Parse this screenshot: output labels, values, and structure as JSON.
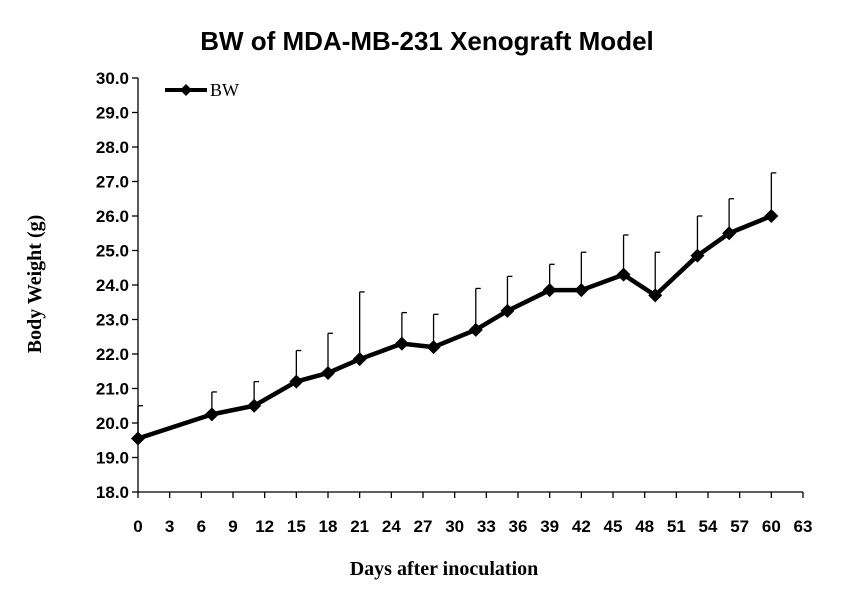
{
  "chart_data": {
    "type": "line",
    "title": "BW of  MDA-MB-231   Xenograft Model",
    "xlabel": "Days after inoculation",
    "ylabel": "Body Weight (g)",
    "xlim": [
      0,
      63
    ],
    "ylim": [
      18.0,
      30.0
    ],
    "x_ticks": [
      "0",
      "3",
      "6",
      "9",
      "12",
      "15",
      "18",
      "21",
      "24",
      "27",
      "30",
      "33",
      "36",
      "39",
      "42",
      "45",
      "48",
      "51",
      "54",
      "57",
      "60",
      "63"
    ],
    "y_ticks": [
      "18.0",
      "19.0",
      "20.0",
      "21.0",
      "22.0",
      "23.0",
      "24.0",
      "25.0",
      "26.0",
      "27.0",
      "28.0",
      "29.0",
      "30.0"
    ],
    "grid": false,
    "legend": "top-left",
    "series": [
      {
        "name": "BW",
        "color": "#000000",
        "marker": "diamond",
        "x": [
          0,
          7,
          11,
          15,
          18,
          21,
          25,
          28,
          32,
          35,
          39,
          42,
          46,
          49,
          53,
          56,
          60
        ],
        "y": [
          19.55,
          20.25,
          20.5,
          21.2,
          21.45,
          21.85,
          22.3,
          22.2,
          22.7,
          23.25,
          23.85,
          23.85,
          24.3,
          23.7,
          24.85,
          25.5,
          26.0
        ],
        "error_upper": [
          0.95,
          0.65,
          0.7,
          0.9,
          1.15,
          1.95,
          0.9,
          0.95,
          1.2,
          1.0,
          0.75,
          1.1,
          1.15,
          1.25,
          1.15,
          1.0,
          1.25
        ]
      }
    ]
  }
}
